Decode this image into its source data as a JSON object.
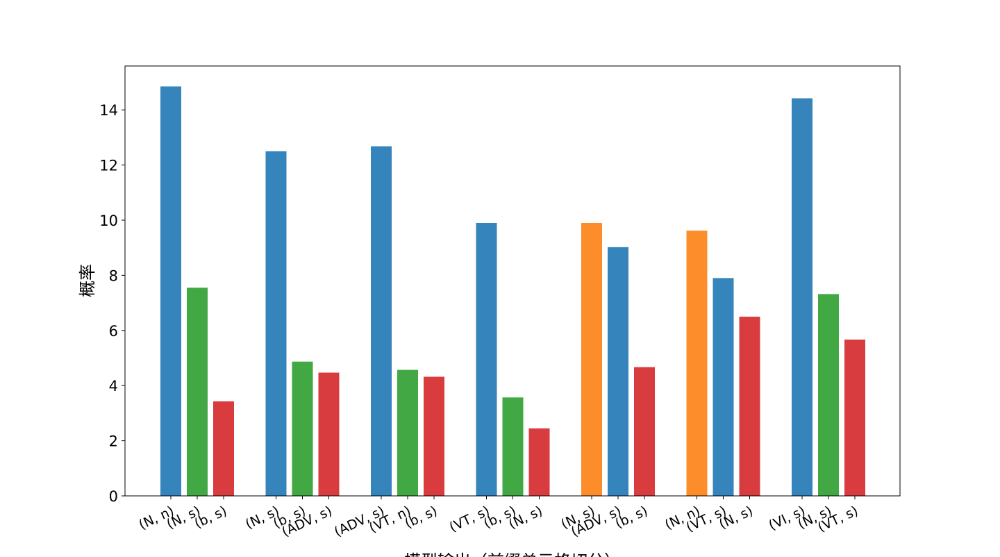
{
  "chart_data": {
    "type": "bar",
    "title": "",
    "xlabel": "模型输出（前缀单元格切分）",
    "ylabel": "概率",
    "ylim": [
      0,
      15.6
    ],
    "yticks": [
      0,
      2,
      4,
      6,
      8,
      10,
      12,
      14
    ],
    "grid": false,
    "legend": "none",
    "colors": {
      "blue": "#3584bb",
      "green": "#42a843",
      "red": "#d93c3f",
      "orange": "#fd8c2a"
    },
    "groups": [
      {
        "bars": [
          {
            "label": "(N, n)",
            "value": 14.85,
            "color": "blue"
          },
          {
            "label": "(N, s)",
            "value": 7.55,
            "color": "green"
          },
          {
            "label": "(b, s)",
            "value": 3.43,
            "color": "red"
          }
        ]
      },
      {
        "bars": [
          {
            "label": "(N, s)",
            "value": 12.5,
            "color": "blue"
          },
          {
            "label": "(b, s)",
            "value": 4.87,
            "color": "green"
          },
          {
            "label": "(ADV, s)",
            "value": 4.47,
            "color": "red"
          }
        ]
      },
      {
        "bars": [
          {
            "label": "(ADV, s)",
            "value": 12.68,
            "color": "blue"
          },
          {
            "label": "(VT, n)",
            "value": 4.57,
            "color": "green"
          },
          {
            "label": "(b, s)",
            "value": 4.32,
            "color": "red"
          }
        ]
      },
      {
        "bars": [
          {
            "label": "(VT, s)",
            "value": 9.9,
            "color": "blue"
          },
          {
            "label": "(b, s)",
            "value": 3.57,
            "color": "green"
          },
          {
            "label": "(N, s)",
            "value": 2.45,
            "color": "red"
          }
        ]
      },
      {
        "bars": [
          {
            "label": "(N, s)",
            "value": 9.9,
            "color": "orange"
          },
          {
            "label": "(ADV, s)",
            "value": 9.02,
            "color": "blue"
          },
          {
            "label": "(b, s)",
            "value": 4.67,
            "color": "red"
          }
        ]
      },
      {
        "bars": [
          {
            "label": "(N, n)",
            "value": 9.62,
            "color": "orange"
          },
          {
            "label": "(VT, s)",
            "value": 7.9,
            "color": "blue"
          },
          {
            "label": "(N, s)",
            "value": 6.5,
            "color": "red"
          }
        ]
      },
      {
        "bars": [
          {
            "label": "(VI, s)",
            "value": 14.42,
            "color": "blue"
          },
          {
            "label": "(N, s)",
            "value": 7.32,
            "color": "green"
          },
          {
            "label": "(VT, s)",
            "value": 5.67,
            "color": "red"
          }
        ]
      }
    ]
  }
}
